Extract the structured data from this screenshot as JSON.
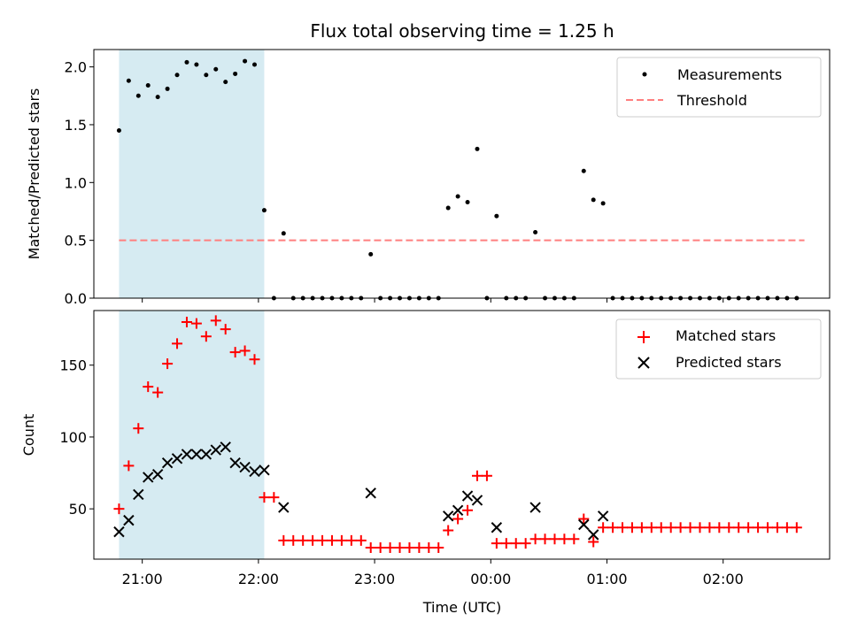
{
  "title": "Flux total observing time = 1.25 h",
  "colors": {
    "shade": "#add8e6",
    "measurement": "#000000",
    "threshold": "#ff7f7f",
    "matched": "#ff0000",
    "predicted": "#000000"
  },
  "x_axis": {
    "label": "Time (UTC)",
    "ticks": [
      {
        "t": 21.0,
        "label": "21:00"
      },
      {
        "t": 22.0,
        "label": "22:00"
      },
      {
        "t": 23.0,
        "label": "23:00"
      },
      {
        "t": 24.0,
        "label": "00:00"
      },
      {
        "t": 25.0,
        "label": "01:00"
      },
      {
        "t": 26.0,
        "label": "02:00"
      }
    ]
  },
  "chart_data": [
    {
      "type": "scatter",
      "ylabel": "Matched/Predicted stars",
      "xlim": [
        "20:35",
        "02:55"
      ],
      "ylim": [
        0,
        2.15
      ],
      "yticks": [
        {
          "v": 0.0,
          "label": "0.0"
        },
        {
          "v": 0.5,
          "label": "0.5"
        },
        {
          "v": 1.0,
          "label": "1.0"
        },
        {
          "v": 1.5,
          "label": "1.5"
        },
        {
          "v": 2.0,
          "label": "2.0"
        }
      ],
      "shaded_interval": [
        "20:48",
        "22:03"
      ],
      "legend": {
        "position": "upper right",
        "measurements_label": "Measurements",
        "threshold_label": "Threshold"
      },
      "threshold": {
        "value": 0.5,
        "from": "20:48",
        "to": "02:42"
      },
      "measurements": [
        {
          "x": "20:48",
          "y": 1.45
        },
        {
          "x": "20:53",
          "y": 1.88
        },
        {
          "x": "20:58",
          "y": 1.75
        },
        {
          "x": "21:03",
          "y": 1.84
        },
        {
          "x": "21:08",
          "y": 1.74
        },
        {
          "x": "21:13",
          "y": 1.81
        },
        {
          "x": "21:18",
          "y": 1.93
        },
        {
          "x": "21:23",
          "y": 2.04
        },
        {
          "x": "21:28",
          "y": 2.02
        },
        {
          "x": "21:33",
          "y": 1.93
        },
        {
          "x": "21:38",
          "y": 1.98
        },
        {
          "x": "21:43",
          "y": 1.87
        },
        {
          "x": "21:48",
          "y": 1.94
        },
        {
          "x": "21:53",
          "y": 2.05
        },
        {
          "x": "21:58",
          "y": 2.02
        },
        {
          "x": "22:03",
          "y": 0.76
        },
        {
          "x": "22:08",
          "y": 0.0
        },
        {
          "x": "22:13",
          "y": 0.56
        },
        {
          "x": "22:18",
          "y": 0.0
        },
        {
          "x": "22:23",
          "y": 0.0
        },
        {
          "x": "22:28",
          "y": 0.0
        },
        {
          "x": "22:33",
          "y": 0.0
        },
        {
          "x": "22:38",
          "y": 0.0
        },
        {
          "x": "22:43",
          "y": 0.0
        },
        {
          "x": "22:48",
          "y": 0.0
        },
        {
          "x": "22:53",
          "y": 0.0
        },
        {
          "x": "22:58",
          "y": 0.38
        },
        {
          "x": "23:03",
          "y": 0.0
        },
        {
          "x": "23:08",
          "y": 0.0
        },
        {
          "x": "23:13",
          "y": 0.0
        },
        {
          "x": "23:18",
          "y": 0.0
        },
        {
          "x": "23:23",
          "y": 0.0
        },
        {
          "x": "23:28",
          "y": 0.0
        },
        {
          "x": "23:33",
          "y": 0.0
        },
        {
          "x": "23:38",
          "y": 0.78
        },
        {
          "x": "23:43",
          "y": 0.88
        },
        {
          "x": "23:48",
          "y": 0.83
        },
        {
          "x": "23:53",
          "y": 1.29
        },
        {
          "x": "23:58",
          "y": 0.0
        },
        {
          "x": "00:03",
          "y": 0.71
        },
        {
          "x": "00:08",
          "y": 0.0
        },
        {
          "x": "00:13",
          "y": 0.0
        },
        {
          "x": "00:18",
          "y": 0.0
        },
        {
          "x": "00:23",
          "y": 0.57
        },
        {
          "x": "00:28",
          "y": 0.0
        },
        {
          "x": "00:33",
          "y": 0.0
        },
        {
          "x": "00:38",
          "y": 0.0
        },
        {
          "x": "00:43",
          "y": 0.0
        },
        {
          "x": "00:48",
          "y": 1.1
        },
        {
          "x": "00:53",
          "y": 0.85
        },
        {
          "x": "00:58",
          "y": 0.82
        },
        {
          "x": "01:03",
          "y": 0.0
        },
        {
          "x": "01:08",
          "y": 0.0
        },
        {
          "x": "01:13",
          "y": 0.0
        },
        {
          "x": "01:18",
          "y": 0.0
        },
        {
          "x": "01:23",
          "y": 0.0
        },
        {
          "x": "01:28",
          "y": 0.0
        },
        {
          "x": "01:33",
          "y": 0.0
        },
        {
          "x": "01:38",
          "y": 0.0
        },
        {
          "x": "01:43",
          "y": 0.0
        },
        {
          "x": "01:48",
          "y": 0.0
        },
        {
          "x": "01:53",
          "y": 0.0
        },
        {
          "x": "01:58",
          "y": 0.0
        },
        {
          "x": "02:03",
          "y": 0.0
        },
        {
          "x": "02:08",
          "y": 0.0
        },
        {
          "x": "02:13",
          "y": 0.0
        },
        {
          "x": "02:18",
          "y": 0.0
        },
        {
          "x": "02:23",
          "y": 0.0
        },
        {
          "x": "02:28",
          "y": 0.0
        },
        {
          "x": "02:33",
          "y": 0.0
        },
        {
          "x": "02:38",
          "y": 0.0
        }
      ]
    },
    {
      "type": "scatter",
      "ylabel": "Count",
      "xlabel": "Time (UTC)",
      "xlim": [
        "20:35",
        "02:55"
      ],
      "ylim": [
        15,
        188
      ],
      "yticks": [
        {
          "v": 50,
          "label": "50"
        },
        {
          "v": 100,
          "label": "100"
        },
        {
          "v": 150,
          "label": "150"
        }
      ],
      "shaded_interval": [
        "20:48",
        "22:03"
      ],
      "legend": {
        "position": "upper right",
        "matched_label": "Matched stars",
        "predicted_label": "Predicted stars"
      },
      "matched": [
        {
          "x": "20:48",
          "y": 50
        },
        {
          "x": "20:53",
          "y": 80
        },
        {
          "x": "20:58",
          "y": 106
        },
        {
          "x": "21:03",
          "y": 135
        },
        {
          "x": "21:08",
          "y": 131
        },
        {
          "x": "21:13",
          "y": 151
        },
        {
          "x": "21:18",
          "y": 165
        },
        {
          "x": "21:23",
          "y": 180
        },
        {
          "x": "21:28",
          "y": 179
        },
        {
          "x": "21:33",
          "y": 170
        },
        {
          "x": "21:38",
          "y": 181
        },
        {
          "x": "21:43",
          "y": 175
        },
        {
          "x": "21:48",
          "y": 159
        },
        {
          "x": "21:53",
          "y": 160
        },
        {
          "x": "21:58",
          "y": 154
        },
        {
          "x": "22:03",
          "y": 58
        },
        {
          "x": "22:08",
          "y": 58
        },
        {
          "x": "22:13",
          "y": 28
        },
        {
          "x": "22:18",
          "y": 28
        },
        {
          "x": "22:23",
          "y": 28
        },
        {
          "x": "22:28",
          "y": 28
        },
        {
          "x": "22:33",
          "y": 28
        },
        {
          "x": "22:38",
          "y": 28
        },
        {
          "x": "22:43",
          "y": 28
        },
        {
          "x": "22:48",
          "y": 28
        },
        {
          "x": "22:53",
          "y": 28
        },
        {
          "x": "22:58",
          "y": 23
        },
        {
          "x": "23:03",
          "y": 23
        },
        {
          "x": "23:08",
          "y": 23
        },
        {
          "x": "23:13",
          "y": 23
        },
        {
          "x": "23:18",
          "y": 23
        },
        {
          "x": "23:23",
          "y": 23
        },
        {
          "x": "23:28",
          "y": 23
        },
        {
          "x": "23:33",
          "y": 23
        },
        {
          "x": "23:38",
          "y": 35
        },
        {
          "x": "23:43",
          "y": 43
        },
        {
          "x": "23:48",
          "y": 49
        },
        {
          "x": "23:53",
          "y": 73
        },
        {
          "x": "23:58",
          "y": 73
        },
        {
          "x": "00:03",
          "y": 26
        },
        {
          "x": "00:08",
          "y": 26
        },
        {
          "x": "00:13",
          "y": 26
        },
        {
          "x": "00:18",
          "y": 26
        },
        {
          "x": "00:23",
          "y": 29
        },
        {
          "x": "00:28",
          "y": 29
        },
        {
          "x": "00:33",
          "y": 29
        },
        {
          "x": "00:38",
          "y": 29
        },
        {
          "x": "00:43",
          "y": 29
        },
        {
          "x": "00:48",
          "y": 43
        },
        {
          "x": "00:53",
          "y": 27
        },
        {
          "x": "00:58",
          "y": 37
        },
        {
          "x": "01:03",
          "y": 37
        },
        {
          "x": "01:08",
          "y": 37
        },
        {
          "x": "01:13",
          "y": 37
        },
        {
          "x": "01:18",
          "y": 37
        },
        {
          "x": "01:23",
          "y": 37
        },
        {
          "x": "01:28",
          "y": 37
        },
        {
          "x": "01:33",
          "y": 37
        },
        {
          "x": "01:38",
          "y": 37
        },
        {
          "x": "01:43",
          "y": 37
        },
        {
          "x": "01:48",
          "y": 37
        },
        {
          "x": "01:53",
          "y": 37
        },
        {
          "x": "01:58",
          "y": 37
        },
        {
          "x": "02:03",
          "y": 37
        },
        {
          "x": "02:08",
          "y": 37
        },
        {
          "x": "02:13",
          "y": 37
        },
        {
          "x": "02:18",
          "y": 37
        },
        {
          "x": "02:23",
          "y": 37
        },
        {
          "x": "02:28",
          "y": 37
        },
        {
          "x": "02:33",
          "y": 37
        },
        {
          "x": "02:38",
          "y": 37
        }
      ],
      "predicted": [
        {
          "x": "20:48",
          "y": 34
        },
        {
          "x": "20:53",
          "y": 42
        },
        {
          "x": "20:58",
          "y": 60
        },
        {
          "x": "21:03",
          "y": 72
        },
        {
          "x": "21:08",
          "y": 74
        },
        {
          "x": "21:13",
          "y": 82
        },
        {
          "x": "21:18",
          "y": 85
        },
        {
          "x": "21:23",
          "y": 88
        },
        {
          "x": "21:28",
          "y": 88
        },
        {
          "x": "21:33",
          "y": 88
        },
        {
          "x": "21:38",
          "y": 91
        },
        {
          "x": "21:43",
          "y": 93
        },
        {
          "x": "21:48",
          "y": 82
        },
        {
          "x": "21:53",
          "y": 79
        },
        {
          "x": "21:58",
          "y": 76
        },
        {
          "x": "22:03",
          "y": 77
        },
        {
          "x": "22:13",
          "y": 51
        },
        {
          "x": "22:58",
          "y": 61
        },
        {
          "x": "23:38",
          "y": 45
        },
        {
          "x": "23:43",
          "y": 49
        },
        {
          "x": "23:48",
          "y": 59
        },
        {
          "x": "23:53",
          "y": 56
        },
        {
          "x": "00:03",
          "y": 37
        },
        {
          "x": "00:23",
          "y": 51
        },
        {
          "x": "00:48",
          "y": 39
        },
        {
          "x": "00:53",
          "y": 32
        },
        {
          "x": "00:58",
          "y": 45
        }
      ]
    }
  ]
}
